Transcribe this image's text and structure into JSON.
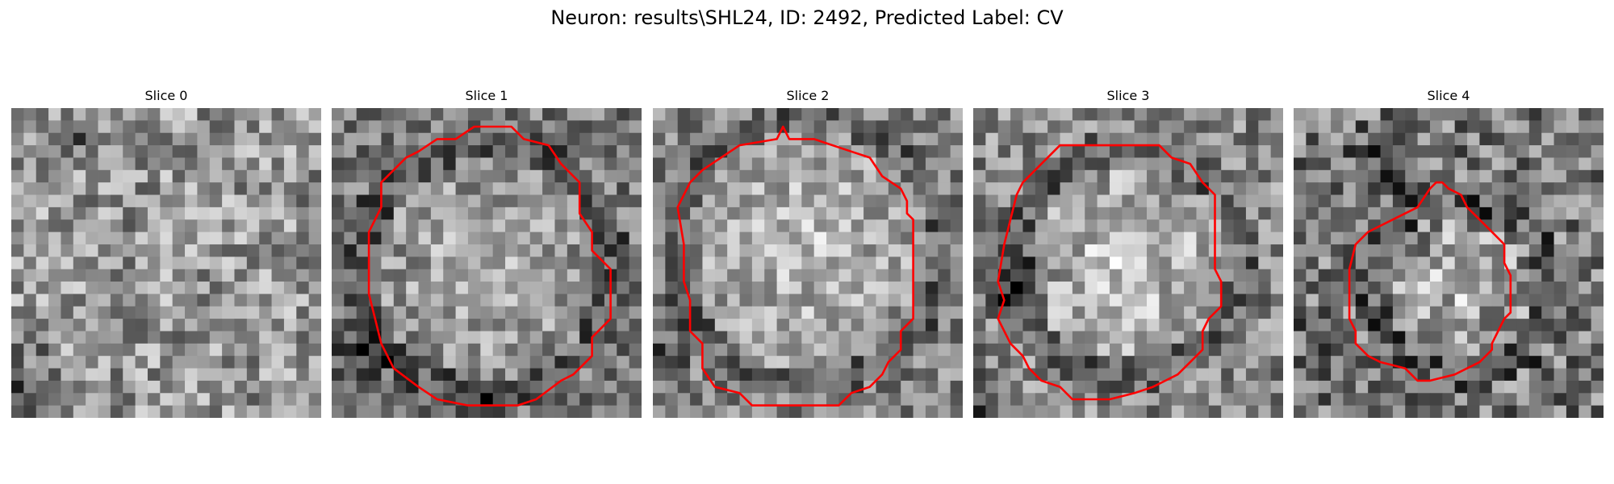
{
  "figure": {
    "title": "Neuron: results\\SHL24, ID: 2492, Predicted Label: CV"
  },
  "panels": [
    {
      "title": "Slice 0",
      "has_contour": false
    },
    {
      "title": "Slice 1",
      "has_contour": true
    },
    {
      "title": "Slice 2",
      "has_contour": true
    },
    {
      "title": "Slice 3",
      "has_contour": true
    },
    {
      "title": "Slice 4",
      "has_contour": true
    }
  ],
  "colors": {
    "contour": "#ff0000",
    "background": "#ffffff"
  },
  "image_style": {
    "colormap": "grayscale",
    "grid_size": 25
  }
}
